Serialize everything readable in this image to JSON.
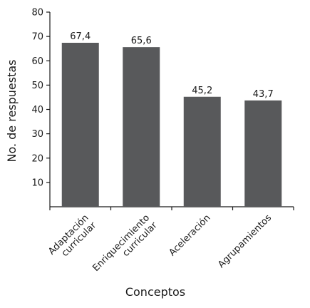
{
  "chart_data": {
    "type": "bar",
    "categories": [
      [
        "Adaptación",
        "curricular"
      ],
      [
        "Enriquecimiento",
        "curricular"
      ],
      [
        "Aceleración"
      ],
      [
        "Agrupamientos"
      ]
    ],
    "values": [
      67.4,
      65.6,
      45.2,
      43.7
    ],
    "value_labels": [
      "67,4",
      "65,6",
      "45,2",
      "43,7"
    ],
    "xlabel": "Conceptos",
    "ylabel": "No. de respuestas",
    "ylim": [
      0,
      80
    ],
    "yticks": [
      10,
      20,
      30,
      40,
      50,
      60,
      70,
      80
    ],
    "grid": false,
    "bar_color": "#58595b"
  }
}
